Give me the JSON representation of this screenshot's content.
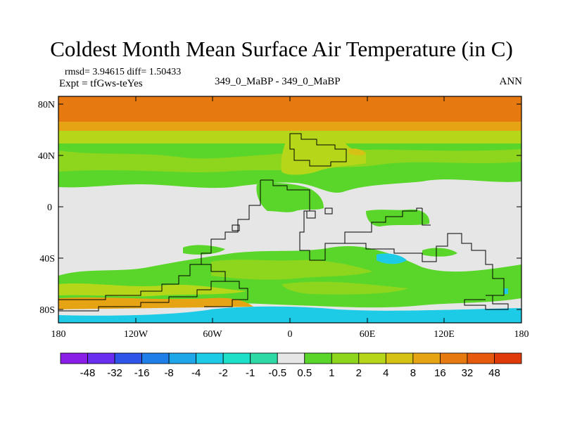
{
  "title": "Coldest Month Mean Surface Air Temperature (in C)",
  "stats": "rmsd= 3.94615 diff= 1.50433",
  "expt": "Expt = tfGws-teYes",
  "center_label": "349_0_MaBP - 349_0_MaBP",
  "season": "ANN",
  "axes": {
    "lat_labels": [
      "80N",
      "40N",
      "0",
      "40S",
      "80S"
    ],
    "lon_labels": [
      "180",
      "120W",
      "60W",
      "0",
      "60E",
      "120E",
      "180"
    ]
  },
  "colorbar": {
    "labels": [
      "-48",
      "-32",
      "-16",
      "-8",
      "-4",
      "-2",
      "-1",
      "-0.5",
      "0.5",
      "1",
      "2",
      "4",
      "8",
      "16",
      "32",
      "48"
    ],
    "colors": [
      "#8a1ee6",
      "#6a2ef0",
      "#2f55e8",
      "#1f7fe8",
      "#1ea6e8",
      "#1ecbe6",
      "#1ee0c8",
      "#2ed9a6",
      "#e6e6e6",
      "#5ad62a",
      "#8ed61e",
      "#b6d61a",
      "#d6c214",
      "#e6a414",
      "#e67a10",
      "#e65a0e",
      "#e03a08"
    ]
  },
  "colors": {
    "land_outline": "#000000",
    "neutral": "#e6e6e6",
    "green": "#5ad62a",
    "lightgreen": "#8ed61e",
    "yellowgreen": "#b6d61a",
    "yellow": "#d6c214",
    "orange": "#e67a10",
    "cyan": "#1ecbe6"
  }
}
